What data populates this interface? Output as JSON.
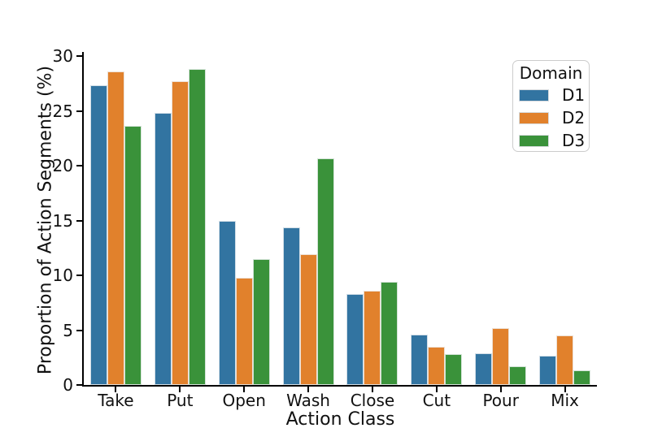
{
  "chart_data": {
    "type": "bar",
    "title": "",
    "xlabel": "Action Class",
    "ylabel": "Proportion of Action Segments (%)",
    "categories": [
      "Take",
      "Put",
      "Open",
      "Wash",
      "Close",
      "Cut",
      "Pour",
      "Mix"
    ],
    "series": [
      {
        "name": "D1",
        "color": "#3274a1",
        "values": [
          27.3,
          24.8,
          15.0,
          14.4,
          8.3,
          4.6,
          2.9,
          2.7
        ]
      },
      {
        "name": "D2",
        "color": "#e1812c",
        "values": [
          28.6,
          27.7,
          9.8,
          11.9,
          8.6,
          3.5,
          5.2,
          4.5
        ]
      },
      {
        "name": "D3",
        "color": "#3a923a",
        "values": [
          23.6,
          28.8,
          11.5,
          20.7,
          9.4,
          2.8,
          1.7,
          1.3
        ]
      }
    ],
    "ylim": [
      0,
      30
    ],
    "y_ticks": [
      0,
      5,
      10,
      15,
      20,
      25,
      30
    ],
    "grid": false,
    "legend": {
      "title": "Domain",
      "position": "upper right"
    }
  },
  "colors": {
    "axis": "#000000",
    "text": "#111111",
    "background": "#ffffff",
    "legend_border": "#cccccc"
  }
}
